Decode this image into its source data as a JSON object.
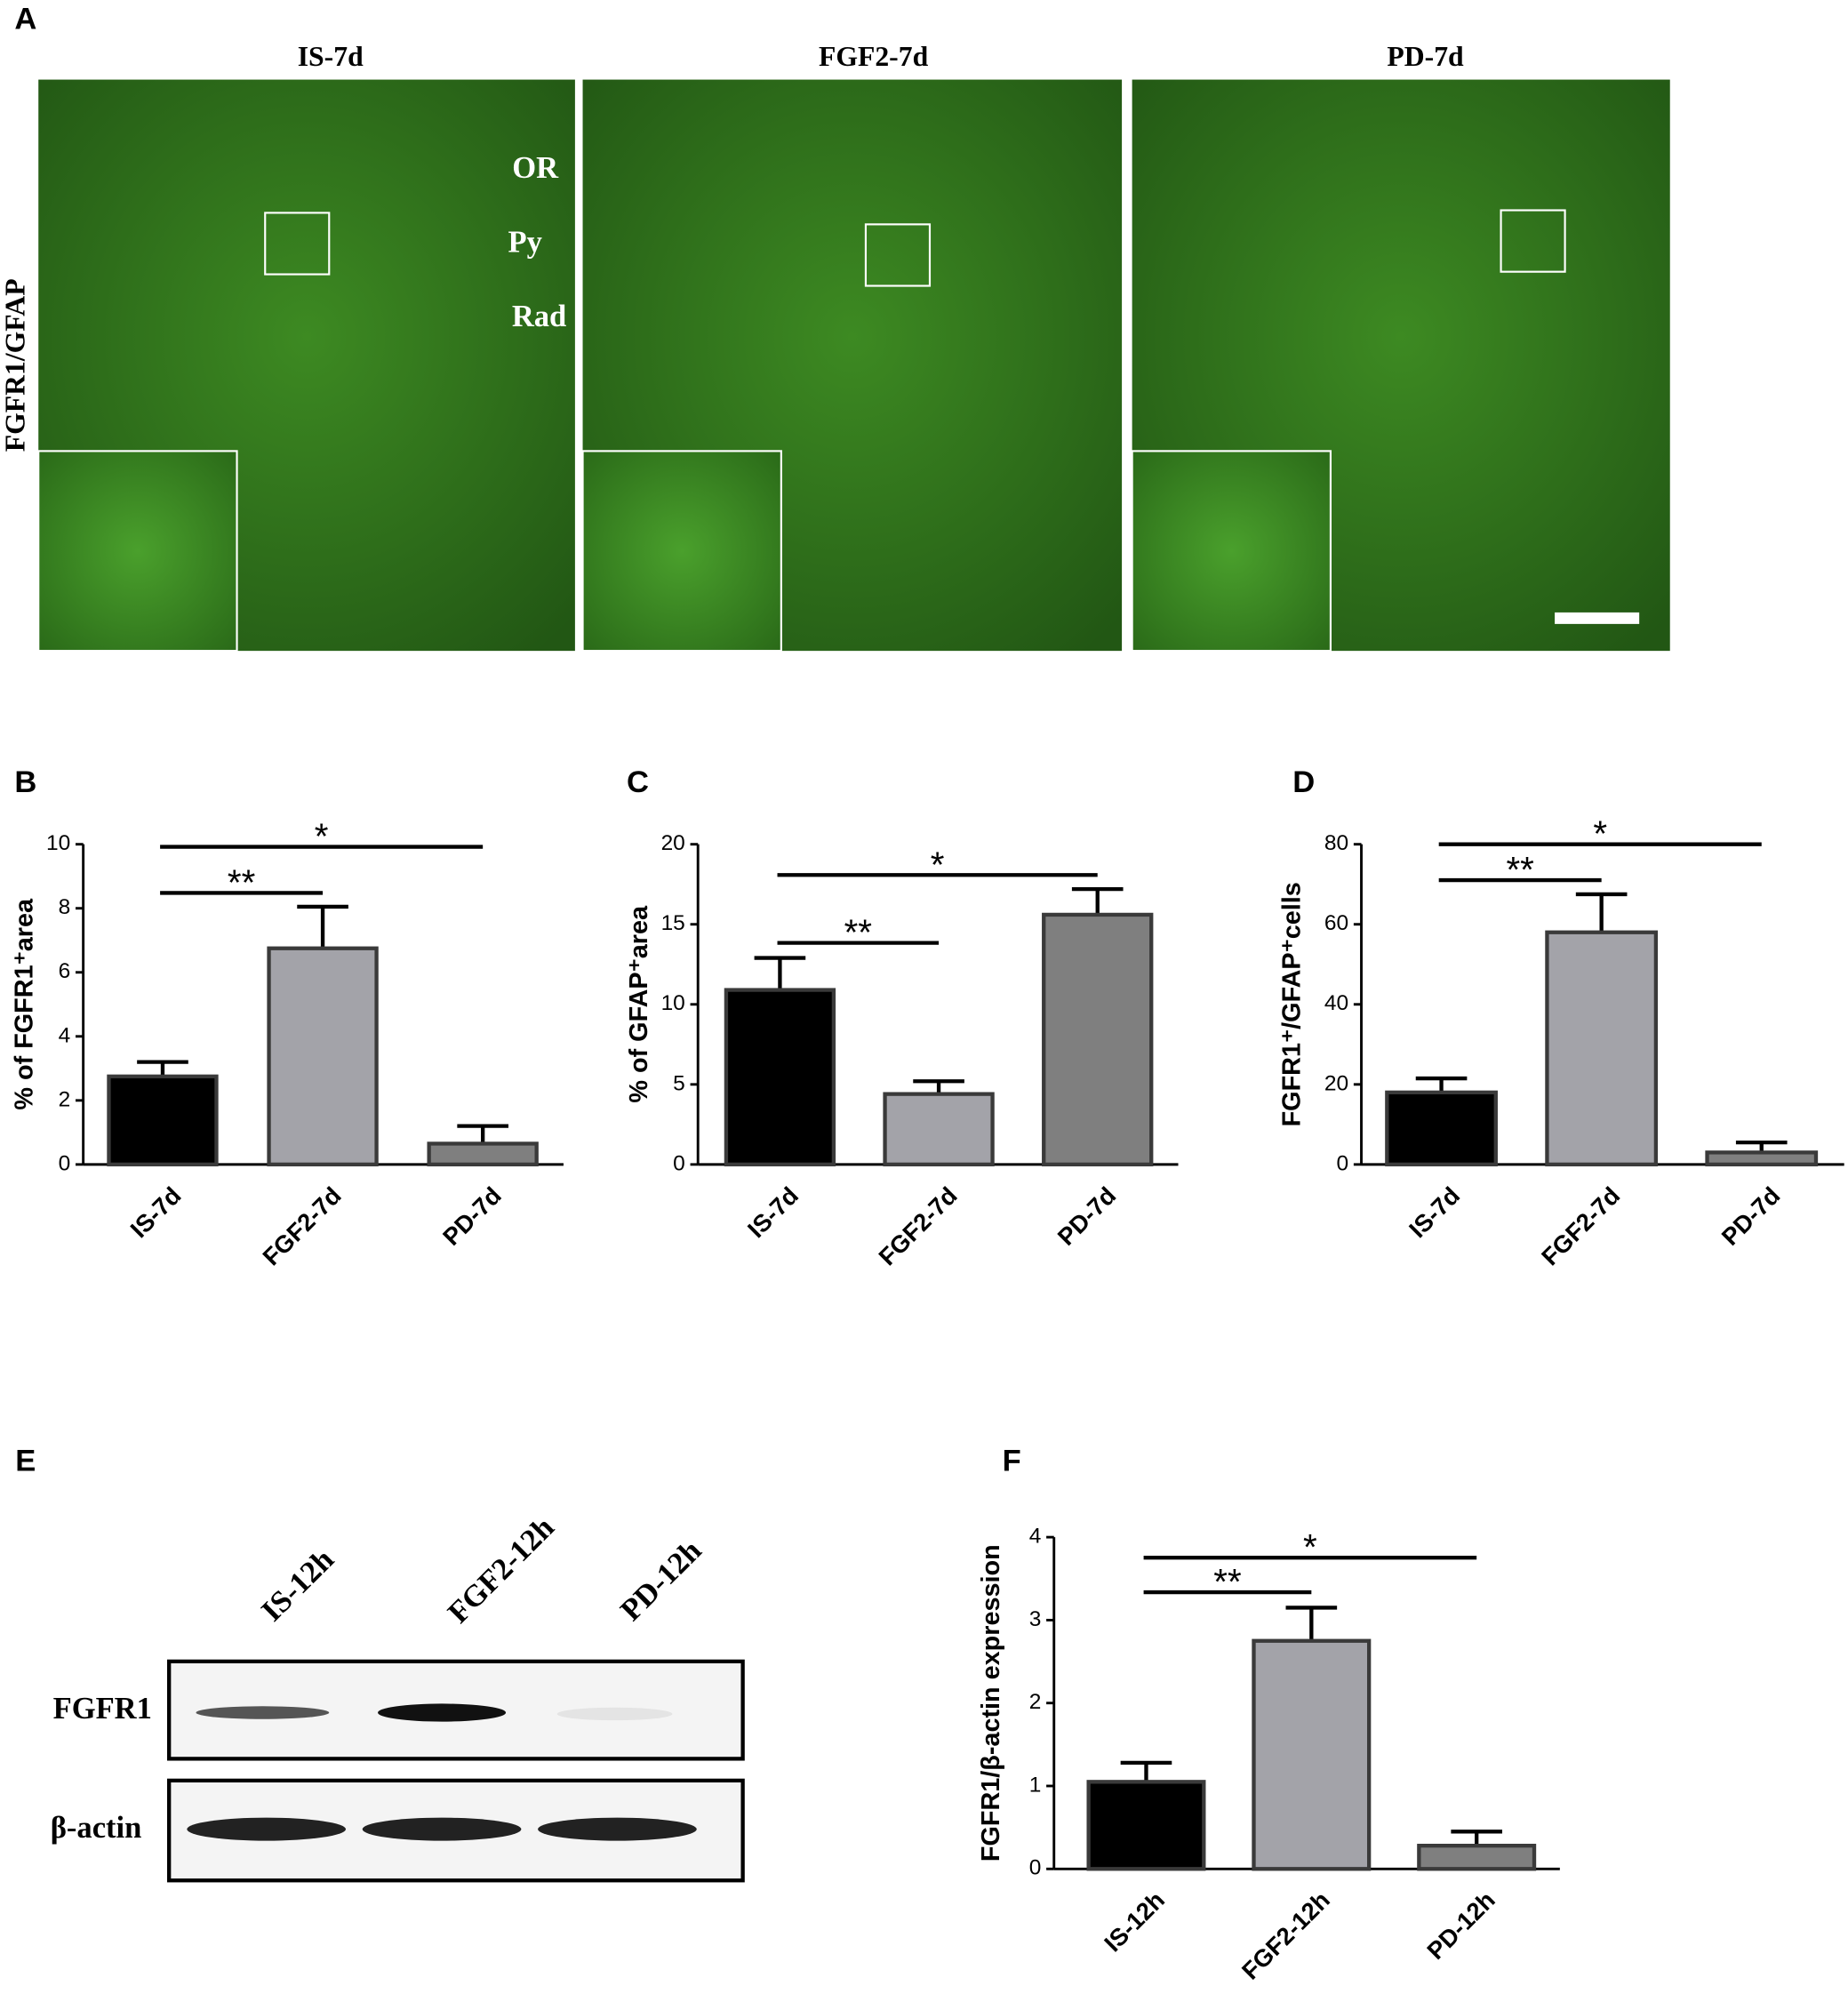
{
  "panel_labels": [
    "A",
    "B",
    "C",
    "D",
    "E",
    "F"
  ],
  "micrographs": {
    "titles": [
      "IS-7d",
      "FGF2-7d",
      "PD-7d"
    ],
    "row_label": "FGFR1/GFAP",
    "layers": [
      "OR",
      "Py",
      "Rad"
    ]
  },
  "blot": {
    "lanes": [
      "IS-12h",
      "FGF2-12h",
      "PD-12h"
    ],
    "rows": [
      "FGFR1",
      "β-actin"
    ]
  },
  "chart_data": [
    {
      "type": "bar",
      "y_label": "% of FGFR1⁺area",
      "categories": [
        "IS-7d",
        "FGF2-7d",
        "PD-7d"
      ],
      "values": [
        2.75,
        6.75,
        0.65
      ],
      "errors": [
        0.45,
        1.3,
        0.55
      ],
      "colors": [
        "#000000",
        "#a3a3a9",
        "#7f7f7f"
      ],
      "ylim": [
        0,
        10
      ],
      "yticks": [
        0,
        2,
        4,
        6,
        8,
        10
      ],
      "significance": [
        {
          "label": "**",
          "span": [
            0,
            1
          ]
        },
        {
          "label": "*",
          "span": [
            0,
            2
          ]
        }
      ]
    },
    {
      "type": "bar",
      "y_label": "% of GFAP⁺area",
      "categories": [
        "IS-7d",
        "FGF2-7d",
        "PD-7d"
      ],
      "values": [
        10.9,
        4.4,
        15.6
      ],
      "errors": [
        2.0,
        0.8,
        1.6
      ],
      "colors": [
        "#000000",
        "#a3a3a9",
        "#7f7f7f"
      ],
      "ylim": [
        0,
        20
      ],
      "yticks": [
        0,
        5,
        10,
        15,
        20
      ],
      "significance": [
        {
          "label": "**",
          "span": [
            0,
            1
          ]
        },
        {
          "label": "*",
          "span": [
            0,
            2
          ]
        }
      ]
    },
    {
      "type": "bar",
      "y_label": "FGFR1⁺/GFAP⁺cells",
      "categories": [
        "IS-7d",
        "FGF2-7d",
        "PD-7d"
      ],
      "values": [
        18,
        58,
        3
      ],
      "errors": [
        3.5,
        9.5,
        2.5
      ],
      "colors": [
        "#000000",
        "#a3a3a9",
        "#7f7f7f"
      ],
      "ylim": [
        0,
        80
      ],
      "yticks": [
        0,
        20,
        40,
        60,
        80
      ],
      "significance": [
        {
          "label": "**",
          "span": [
            0,
            1
          ]
        },
        {
          "label": "*",
          "span": [
            0,
            2
          ]
        }
      ]
    },
    {
      "type": "bar",
      "y_label": "FGFR1/β-actin expression",
      "categories": [
        "IS-12h",
        "FGF2-12h",
        "PD-12h"
      ],
      "values": [
        1.05,
        2.75,
        0.28
      ],
      "errors": [
        0.23,
        0.4,
        0.17
      ],
      "colors": [
        "#000000",
        "#a3a3a9",
        "#7f7f7f"
      ],
      "ylim": [
        0,
        4
      ],
      "yticks": [
        0,
        1,
        2,
        3,
        4
      ],
      "significance": [
        {
          "label": "**",
          "span": [
            0,
            1
          ]
        },
        {
          "label": "*",
          "span": [
            0,
            2
          ]
        }
      ]
    }
  ]
}
